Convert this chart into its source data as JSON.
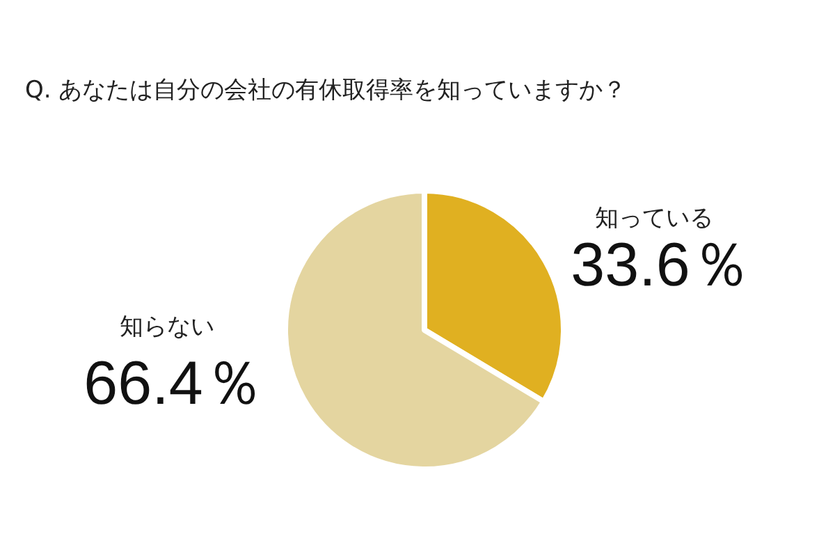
{
  "chart_data": {
    "type": "pie",
    "title": "Q. あなたは自分の会社の有休取得率を知っていますか？",
    "categories": [
      "知っている",
      "知らない"
    ],
    "values": [
      33.6,
      66.4
    ],
    "colors": [
      "#e0b021",
      "#e4d5a0"
    ],
    "value_labels": [
      "33.6％",
      "66.4％"
    ]
  }
}
